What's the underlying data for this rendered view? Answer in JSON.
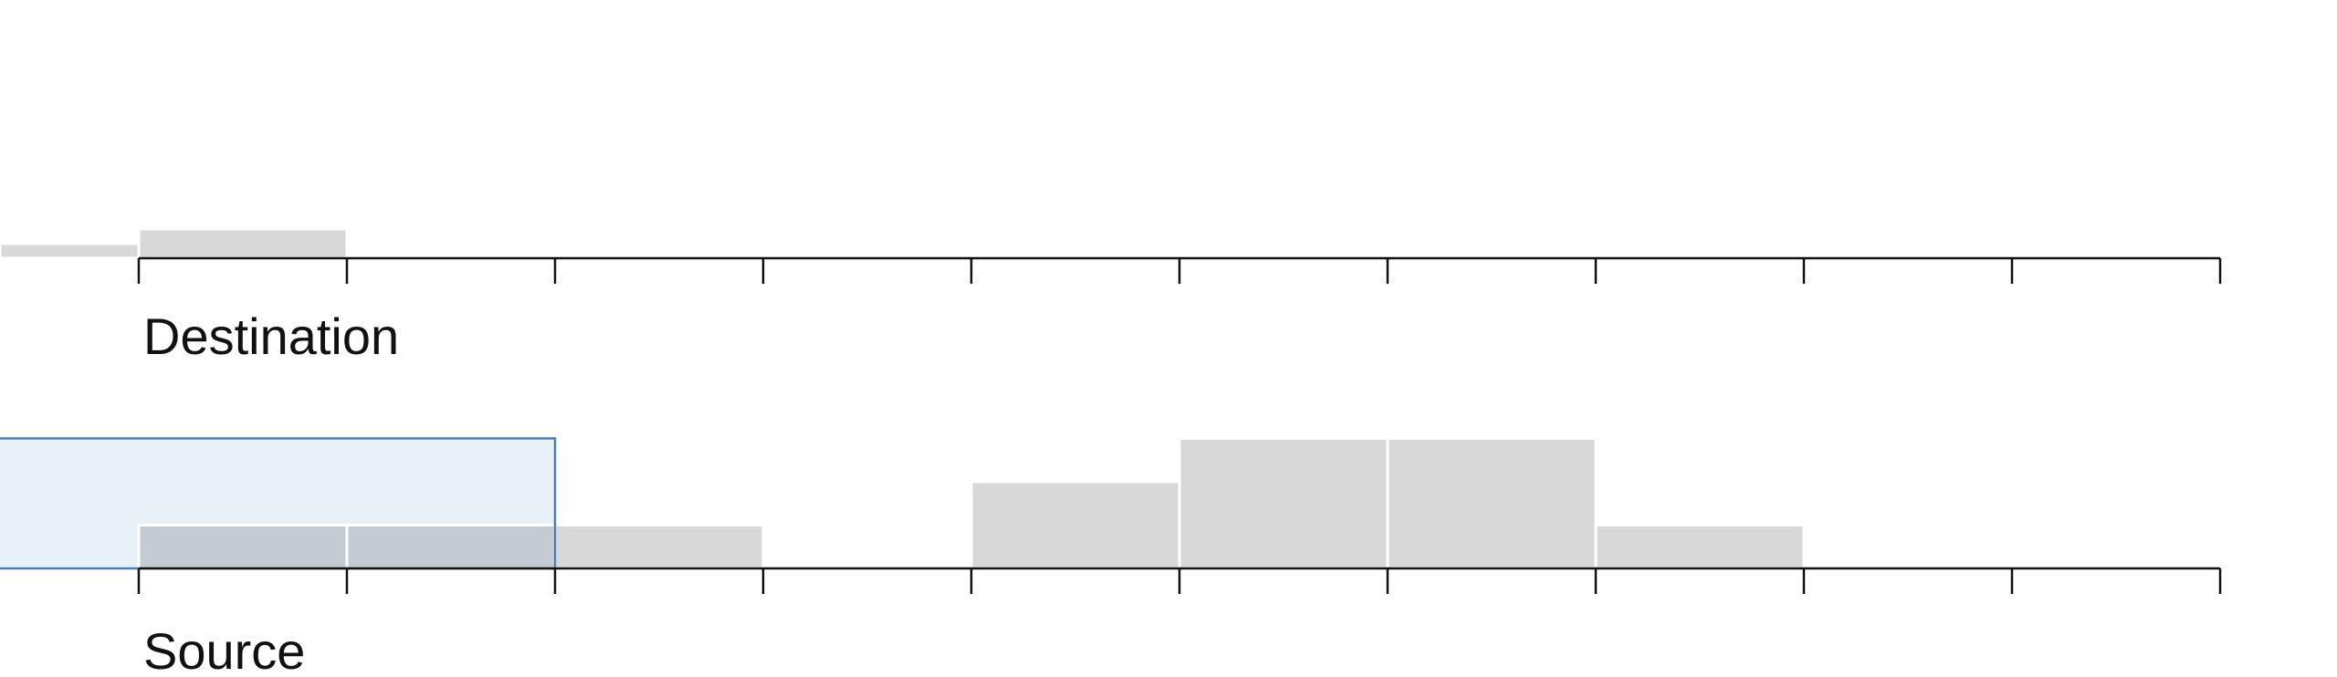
{
  "colors": {
    "bar": "#d8d8d8",
    "axis": "#111111",
    "brush_fill": "#e8f0f8",
    "brush_stroke": "#4a7fb3"
  },
  "chart_data": [
    {
      "type": "histogram",
      "title": "Destination",
      "xlabel": "Destination",
      "x_bins": [
        [
          -1,
          0
        ],
        [
          0,
          1
        ],
        [
          1,
          2
        ],
        [
          2,
          3
        ],
        [
          3,
          4
        ],
        [
          4,
          5
        ],
        [
          5,
          6
        ],
        [
          6,
          7
        ],
        [
          7,
          8
        ],
        [
          8,
          9
        ],
        [
          9,
          10
        ]
      ],
      "values": [
        1,
        2,
        0,
        0,
        0,
        0,
        0,
        0,
        0,
        0,
        0
      ],
      "ylim": [
        0,
        9
      ],
      "xlim": [
        0,
        10
      ],
      "tick_labels_visible": false
    },
    {
      "type": "histogram",
      "title": "Source",
      "xlabel": "Source",
      "x_bins": [
        [
          0,
          1
        ],
        [
          1,
          2
        ],
        [
          2,
          3
        ],
        [
          3,
          4
        ],
        [
          4,
          5
        ],
        [
          5,
          6
        ],
        [
          6,
          7
        ],
        [
          7,
          8
        ],
        [
          8,
          9
        ],
        [
          9,
          10
        ]
      ],
      "values": [
        1,
        1,
        1,
        0,
        2,
        3,
        3,
        1,
        0,
        0
      ],
      "ylim": [
        0,
        3
      ],
      "xlim": [
        0,
        10
      ],
      "brush": [
        -1,
        2
      ],
      "tick_labels_visible": false
    }
  ]
}
